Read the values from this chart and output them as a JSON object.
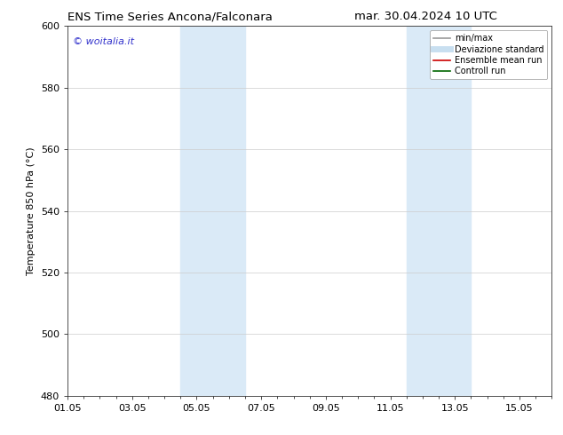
{
  "title_left": "ENS Time Series Ancona/Falconara",
  "title_right": "mar. 30.04.2024 10 UTC",
  "ylabel": "Temperature 850 hPa (°C)",
  "ylim": [
    480,
    600
  ],
  "yticks": [
    480,
    500,
    520,
    540,
    560,
    580,
    600
  ],
  "xlim": [
    0,
    15
  ],
  "xtick_labels": [
    "01.05",
    "03.05",
    "05.05",
    "07.05",
    "09.05",
    "11.05",
    "13.05",
    "15.05"
  ],
  "xtick_positions": [
    0,
    2,
    4,
    6,
    8,
    10,
    12,
    14
  ],
  "shaded_regions": [
    {
      "xmin": 3.5,
      "xmax": 5.5,
      "color": "#daeaf7"
    },
    {
      "xmin": 10.5,
      "xmax": 12.5,
      "color": "#daeaf7"
    }
  ],
  "watermark_text": "© woitalia.it",
  "watermark_color": "#3333cc",
  "legend_items": [
    {
      "label": "min/max",
      "color": "#999999",
      "lw": 1.2,
      "style": "solid"
    },
    {
      "label": "Deviazione standard",
      "color": "#c8dff0",
      "lw": 5,
      "style": "solid"
    },
    {
      "label": "Ensemble mean run",
      "color": "#cc0000",
      "lw": 1.2,
      "style": "solid"
    },
    {
      "label": "Controll run",
      "color": "#006600",
      "lw": 1.2,
      "style": "solid"
    }
  ],
  "background_color": "#ffffff",
  "grid_color": "#cccccc",
  "title_fontsize": 9.5,
  "axis_label_fontsize": 8,
  "tick_fontsize": 8,
  "legend_fontsize": 7,
  "watermark_fontsize": 8
}
